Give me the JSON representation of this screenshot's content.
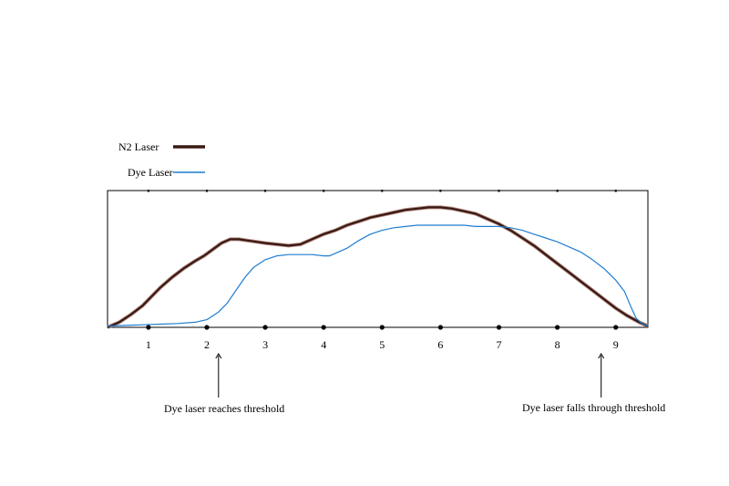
{
  "chart_data": {
    "type": "line",
    "title": "",
    "xlabel": "",
    "ylabel": "",
    "xlim": [
      0.3,
      9.55
    ],
    "ylim": [
      0,
      1
    ],
    "grid": false,
    "legend_placement": "top-left",
    "x_ticks": [
      1,
      2,
      3,
      4,
      5,
      6,
      7,
      8,
      9
    ],
    "x_tick_labels": [
      "1",
      "2",
      "3",
      "4",
      "5",
      "6",
      "7",
      "8",
      "9"
    ],
    "series": [
      {
        "name": "N2  Laser",
        "color": "#3a1a12",
        "x": [
          0.3,
          0.5,
          0.7,
          0.9,
          1.05,
          1.2,
          1.4,
          1.6,
          1.8,
          1.95,
          2.1,
          2.25,
          2.4,
          2.55,
          2.7,
          2.85,
          3.0,
          3.2,
          3.4,
          3.6,
          3.8,
          4.0,
          4.2,
          4.4,
          4.6,
          4.8,
          5.0,
          5.2,
          5.4,
          5.6,
          5.8,
          6.0,
          6.2,
          6.4,
          6.6,
          6.8,
          7.0,
          7.2,
          7.4,
          7.6,
          7.8,
          8.0,
          8.2,
          8.4,
          8.6,
          8.8,
          9.0,
          9.2,
          9.4,
          9.55
        ],
        "values": [
          0.0,
          0.04,
          0.1,
          0.17,
          0.24,
          0.31,
          0.39,
          0.46,
          0.52,
          0.56,
          0.61,
          0.66,
          0.69,
          0.69,
          0.68,
          0.67,
          0.66,
          0.65,
          0.64,
          0.65,
          0.69,
          0.73,
          0.76,
          0.8,
          0.83,
          0.86,
          0.88,
          0.9,
          0.92,
          0.93,
          0.94,
          0.94,
          0.93,
          0.91,
          0.89,
          0.85,
          0.81,
          0.76,
          0.7,
          0.64,
          0.57,
          0.5,
          0.43,
          0.36,
          0.29,
          0.22,
          0.15,
          0.09,
          0.04,
          0.01
        ]
      },
      {
        "name": "Dye  Laser",
        "color": "#1f7dd1",
        "x": [
          0.3,
          0.6,
          0.9,
          1.2,
          1.5,
          1.8,
          2.0,
          2.2,
          2.35,
          2.5,
          2.65,
          2.8,
          3.0,
          3.2,
          3.4,
          3.6,
          3.8,
          4.0,
          4.1,
          4.2,
          4.4,
          4.6,
          4.8,
          5.0,
          5.2,
          5.4,
          5.6,
          5.8,
          6.0,
          6.2,
          6.4,
          6.6,
          6.8,
          7.0,
          7.2,
          7.4,
          7.6,
          7.8,
          8.0,
          8.2,
          8.4,
          8.6,
          8.8,
          9.0,
          9.15,
          9.25,
          9.35,
          9.45,
          9.55
        ],
        "values": [
          0.01,
          0.015,
          0.02,
          0.025,
          0.03,
          0.04,
          0.06,
          0.12,
          0.19,
          0.29,
          0.39,
          0.47,
          0.53,
          0.56,
          0.57,
          0.57,
          0.57,
          0.56,
          0.56,
          0.58,
          0.62,
          0.68,
          0.73,
          0.76,
          0.78,
          0.79,
          0.8,
          0.8,
          0.8,
          0.8,
          0.8,
          0.79,
          0.79,
          0.79,
          0.78,
          0.76,
          0.73,
          0.7,
          0.67,
          0.63,
          0.59,
          0.53,
          0.46,
          0.37,
          0.28,
          0.17,
          0.07,
          0.03,
          0.01
        ]
      }
    ],
    "annotations": [
      {
        "text": "Dye laser reaches threshold",
        "x": 2.2
      },
      {
        "text": "Dye laser falls through threshold",
        "x": 8.75
      }
    ]
  }
}
